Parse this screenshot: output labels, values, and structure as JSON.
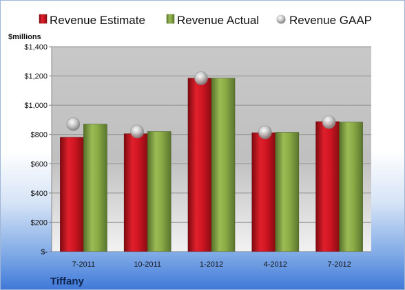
{
  "chart_data": {
    "type": "bar",
    "categories": [
      "7-2011",
      "10-2011",
      "1-2012",
      "4-2012",
      "7-2012"
    ],
    "series": [
      {
        "name": "Revenue Estimate",
        "kind": "bar",
        "color": "#c8101e",
        "values": [
          781,
          805,
          1185,
          812,
          888
        ]
      },
      {
        "name": "Revenue Actual",
        "kind": "bar",
        "color": "#7f9e3a",
        "values": [
          871,
          820,
          1185,
          815,
          885
        ]
      },
      {
        "name": "Revenue GAAP",
        "kind": "marker",
        "color": "#b5b5b5",
        "values": [
          871,
          820,
          1185,
          815,
          885
        ]
      }
    ],
    "ylabel": "$millions",
    "ylim": [
      0,
      1400
    ],
    "yticks": [
      0,
      200,
      400,
      600,
      800,
      1000,
      1200,
      1400
    ],
    "ytick_labels": [
      "$-",
      "$200",
      "$400",
      "$600",
      "$800",
      "$1,000",
      "$1,200",
      "$1,400"
    ],
    "grid": true,
    "legend_position": "top"
  },
  "company": "Tiffany"
}
